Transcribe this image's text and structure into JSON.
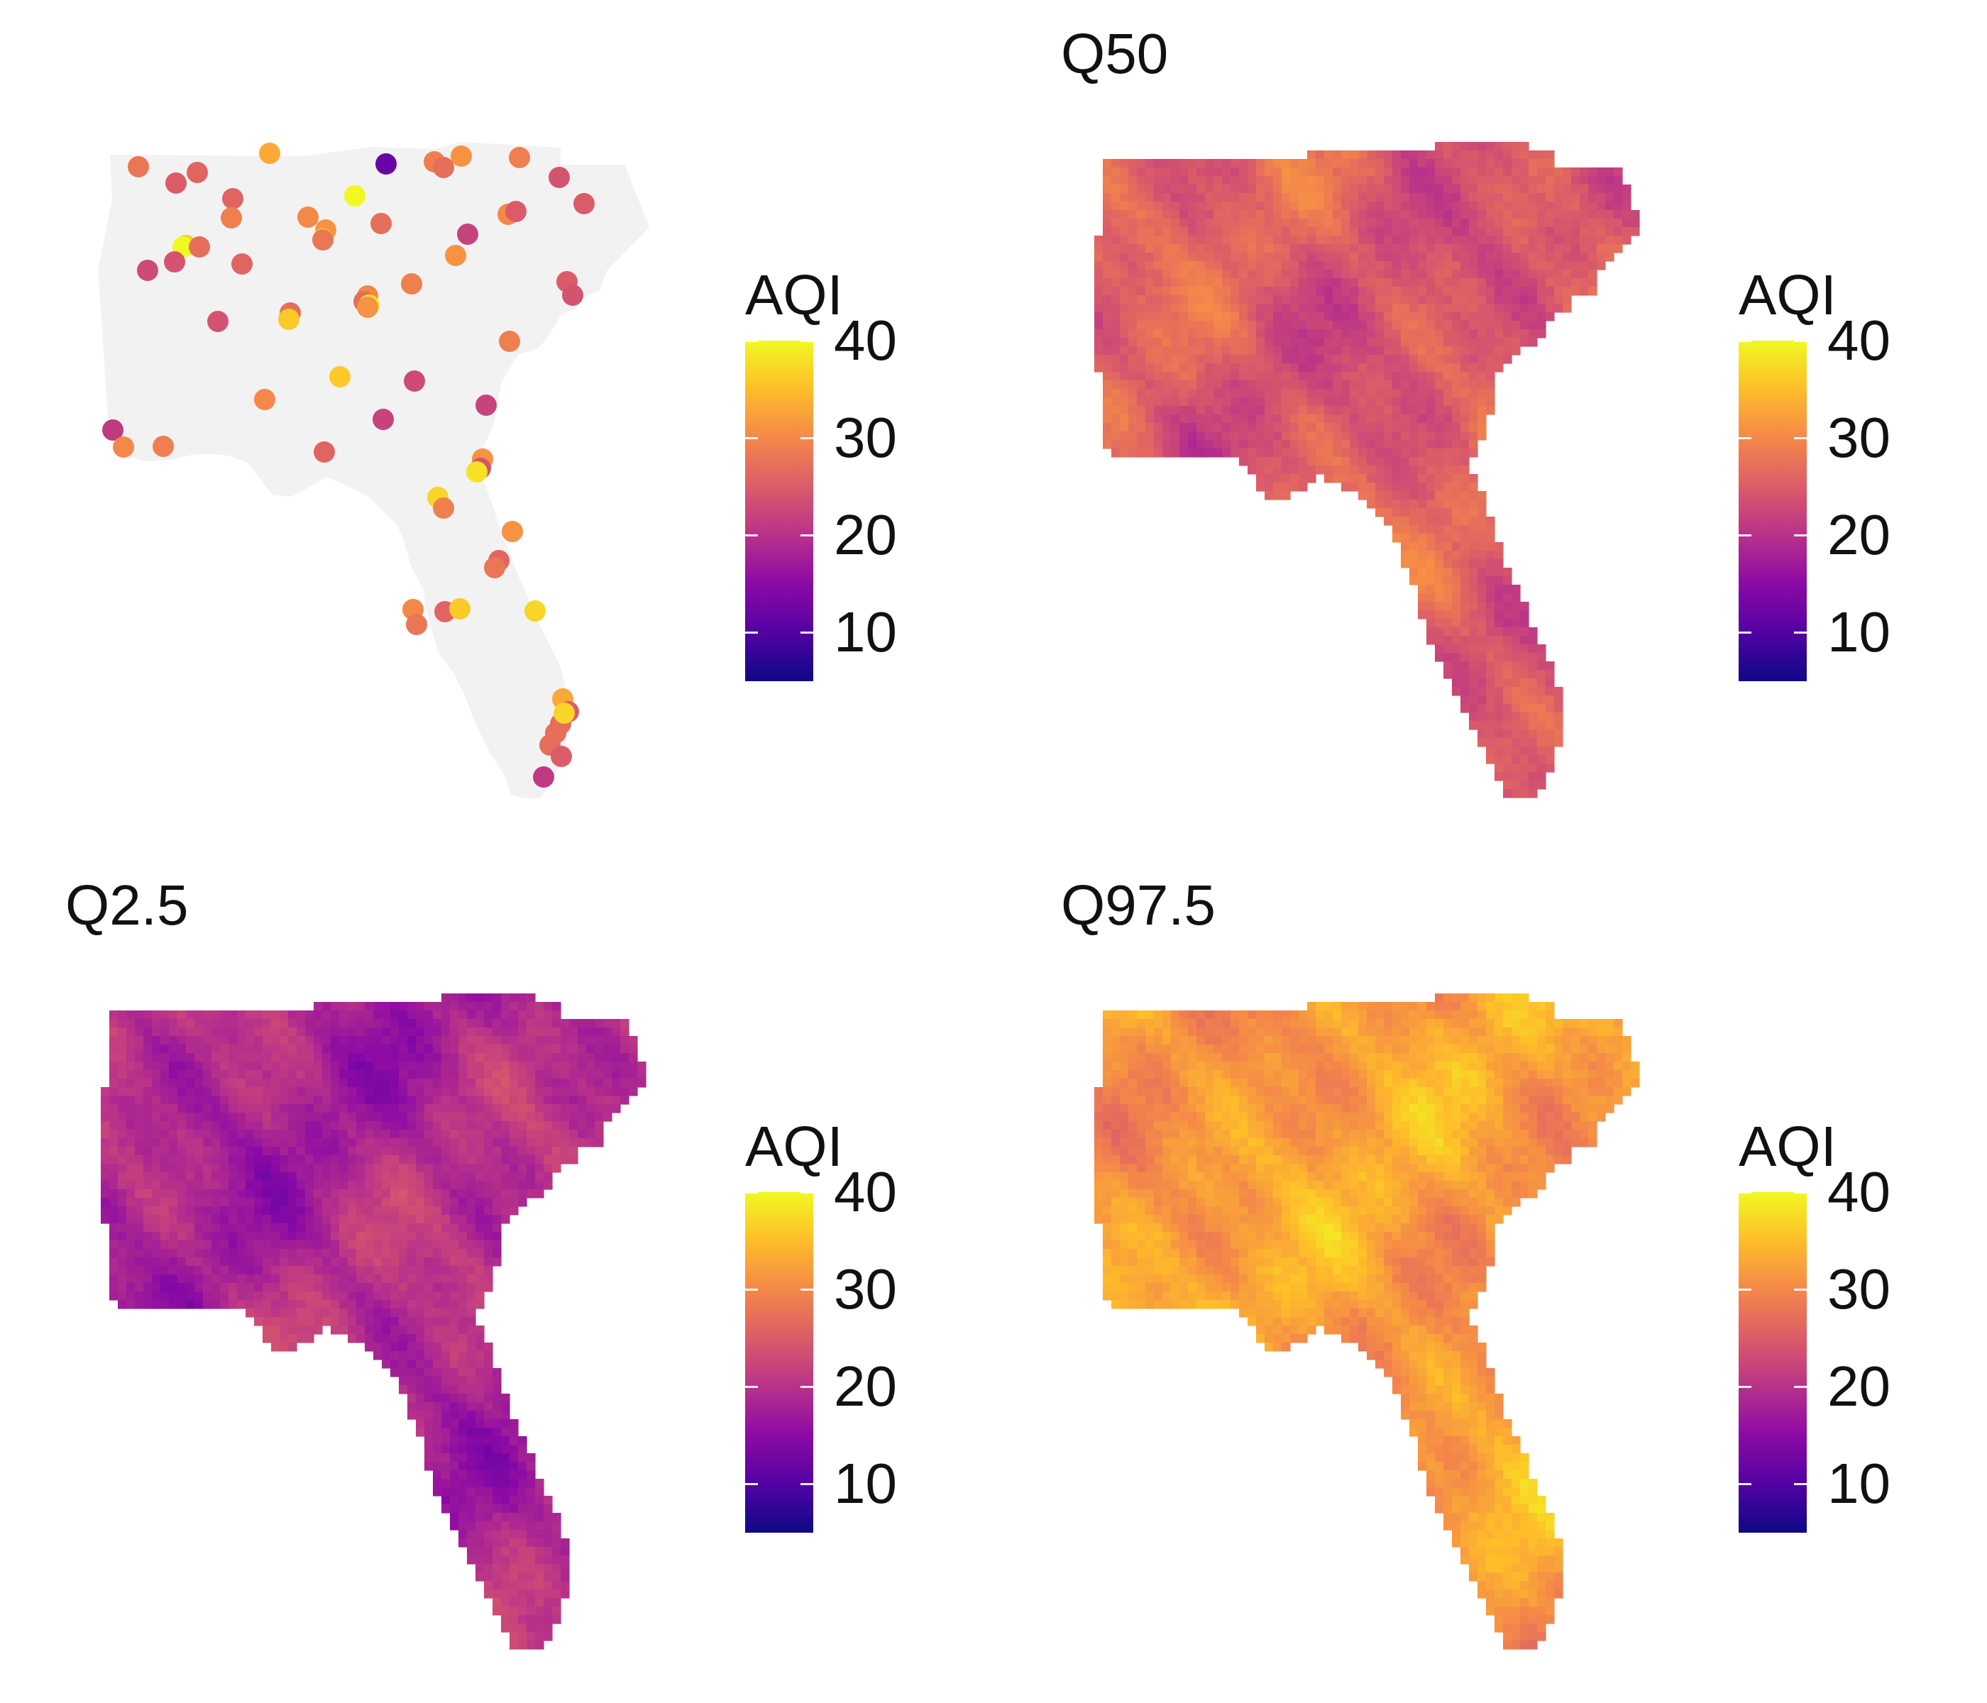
{
  "colorscale": {
    "name": "plasma",
    "min": 5,
    "max": 40,
    "stops": [
      "#0d0887",
      "#5302a3",
      "#8b0aa5",
      "#b83289",
      "#db5c68",
      "#f48849",
      "#febd2a",
      "#f0f921"
    ]
  },
  "map_background_color": "#f2f2f2",
  "panels": [
    {
      "id": "observed",
      "title": "",
      "kind": "points",
      "legend": {
        "title": "AQI",
        "ticks": [
          "40",
          "30",
          "20",
          "10"
        ],
        "tick_values": [
          40,
          30,
          20,
          10
        ]
      }
    },
    {
      "id": "q50",
      "title": "Q50",
      "kind": "field",
      "mean_level": 25,
      "legend": {
        "title": "AQI",
        "ticks": [
          "40",
          "30",
          "20",
          "10"
        ],
        "tick_values": [
          40,
          30,
          20,
          10
        ]
      }
    },
    {
      "id": "q2_5",
      "title": "Q2.5",
      "kind": "field",
      "mean_level": 19,
      "legend": {
        "title": "AQI",
        "ticks": [
          "40",
          "30",
          "20",
          "10"
        ],
        "tick_values": [
          40,
          30,
          20,
          10
        ]
      }
    },
    {
      "id": "q97_5",
      "title": "Q97.5",
      "kind": "field",
      "mean_level": 32,
      "legend": {
        "title": "AQI",
        "ticks": [
          "40",
          "30",
          "20",
          "10"
        ],
        "tick_values": [
          40,
          30,
          20,
          10
        ]
      }
    }
  ],
  "stations_aqi": [
    28,
    25,
    26,
    33,
    12,
    29,
    27,
    31,
    29,
    24,
    25,
    26,
    29,
    40,
    30,
    31,
    39,
    27,
    28,
    30,
    25,
    22,
    36,
    40,
    27,
    23,
    26,
    24,
    29,
    31,
    30,
    27,
    38,
    27,
    36,
    24,
    31,
    29,
    25,
    24,
    23,
    36,
    22,
    30,
    22,
    21,
    30,
    29,
    26,
    31,
    24,
    38,
    37,
    29,
    31,
    26,
    28,
    37,
    30,
    28,
    26,
    36
  ]
}
